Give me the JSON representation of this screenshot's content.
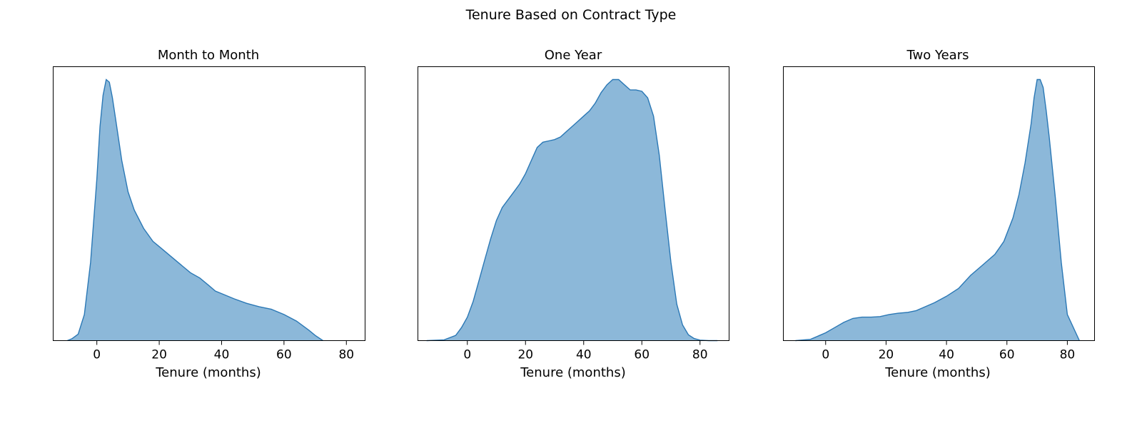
{
  "figure": {
    "title": "Tenure Based on Contract Type"
  },
  "chart_data": [
    {
      "type": "area",
      "title": "Month to Month",
      "xlabel": "Tenure (months)",
      "ylabel": "",
      "xlim": [
        -14,
        86
      ],
      "ylim": [
        0,
        1.0
      ],
      "xticks": [
        0,
        20,
        40,
        60,
        80
      ],
      "grid": false,
      "fill_color": "#8cb8d9",
      "line_color": "#2b78b5",
      "x": [
        -9.5,
        -8,
        -6,
        -4,
        -2,
        0,
        1,
        2,
        3,
        4,
        5,
        6,
        8,
        10,
        12,
        15,
        18,
        20,
        23,
        26,
        30,
        33,
        36,
        38,
        40,
        44,
        48,
        52,
        56,
        60,
        64,
        68,
        70,
        72.5
      ],
      "y": [
        0.0,
        0.007,
        0.025,
        0.1,
        0.3,
        0.62,
        0.82,
        0.94,
        1.0,
        0.99,
        0.93,
        0.85,
        0.69,
        0.57,
        0.5,
        0.43,
        0.38,
        0.36,
        0.33,
        0.3,
        0.26,
        0.24,
        0.21,
        0.19,
        0.18,
        0.16,
        0.143,
        0.13,
        0.12,
        0.1,
        0.075,
        0.04,
        0.02,
        0.0
      ]
    },
    {
      "type": "area",
      "title": "One Year",
      "xlabel": "Tenure (months)",
      "ylabel": "",
      "xlim": [
        -17,
        90
      ],
      "ylim": [
        0,
        1.0
      ],
      "xticks": [
        0,
        20,
        40,
        60,
        80
      ],
      "grid": false,
      "fill_color": "#8cb8d9",
      "line_color": "#2b78b5",
      "x": [
        -14,
        -8,
        -4,
        -2,
        0,
        2,
        4,
        6,
        8,
        10,
        12,
        14,
        16,
        18,
        20,
        22,
        24,
        26,
        28,
        30,
        32,
        34,
        36,
        38,
        40,
        42,
        44,
        46,
        48,
        50,
        52,
        54,
        56,
        58,
        60,
        62,
        64,
        66,
        68,
        70,
        72,
        74,
        76,
        78,
        80,
        83,
        86
      ],
      "y": [
        0.0,
        0.003,
        0.02,
        0.05,
        0.09,
        0.15,
        0.23,
        0.31,
        0.39,
        0.46,
        0.51,
        0.54,
        0.57,
        0.6,
        0.64,
        0.69,
        0.74,
        0.76,
        0.765,
        0.77,
        0.78,
        0.8,
        0.82,
        0.84,
        0.86,
        0.88,
        0.91,
        0.95,
        0.98,
        1.0,
        1.0,
        0.98,
        0.96,
        0.96,
        0.955,
        0.93,
        0.86,
        0.71,
        0.5,
        0.3,
        0.14,
        0.06,
        0.022,
        0.008,
        0.002,
        0.0,
        0.0
      ]
    },
    {
      "type": "area",
      "title": "Two Years",
      "xlabel": "Tenure (months)",
      "ylabel": "",
      "xlim": [
        -14,
        89
      ],
      "ylim": [
        0,
        1.0
      ],
      "xticks": [
        0,
        20,
        40,
        60,
        80
      ],
      "grid": false,
      "fill_color": "#8cb8d9",
      "line_color": "#2b78b5",
      "x": [
        -10,
        -5,
        -2,
        0,
        3,
        6,
        9,
        12,
        15,
        18,
        21,
        24,
        27,
        30,
        33,
        36,
        40,
        44,
        48,
        52,
        56,
        59,
        62,
        64,
        66,
        68,
        69,
        70,
        71,
        72,
        73,
        74,
        76,
        78,
        80,
        84
      ],
      "y": [
        0.0,
        0.005,
        0.02,
        0.03,
        0.05,
        0.07,
        0.085,
        0.09,
        0.09,
        0.092,
        0.1,
        0.105,
        0.108,
        0.115,
        0.13,
        0.145,
        0.17,
        0.2,
        0.25,
        0.29,
        0.33,
        0.38,
        0.47,
        0.56,
        0.68,
        0.83,
        0.93,
        1.0,
        1.0,
        0.97,
        0.88,
        0.78,
        0.55,
        0.3,
        0.1,
        0.0
      ]
    }
  ]
}
